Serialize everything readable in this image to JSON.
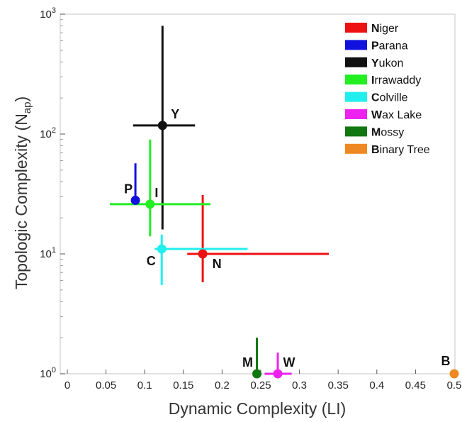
{
  "chart_data": {
    "type": "scatter",
    "xlabel": "Dynamic Complexity (LI)",
    "ylabel_main": "Topologic Complexity (N",
    "ylabel_sub": "ap",
    "ylabel_close": ")",
    "xlim": [
      0,
      0.5
    ],
    "ylim": [
      1,
      1000
    ],
    "yscale": "log",
    "grid": false,
    "legend_position": "top-right",
    "x_ticks": [
      "0",
      "0.05",
      "0.1",
      "0.15",
      "0.2",
      "0.25",
      "0.3",
      "0.35",
      "0.4",
      "0.45",
      "0.5"
    ],
    "y_ticks": [
      {
        "base": "10",
        "exp": "0"
      },
      {
        "base": "10",
        "exp": "1"
      },
      {
        "base": "10",
        "exp": "2"
      },
      {
        "base": "10",
        "exp": "3"
      }
    ],
    "series": [
      {
        "name": "Niger",
        "initial": "N",
        "rest": "iger",
        "label": "N",
        "color": "#ee1111",
        "x": 0.175,
        "y": 10,
        "x_err": [
          0.155,
          0.338
        ],
        "y_err": [
          5.8,
          31
        ]
      },
      {
        "name": "Parana",
        "initial": "P",
        "rest": "arana",
        "label": "P",
        "color": "#1111dd",
        "x": 0.088,
        "y": 28,
        "x_err": null,
        "y_err": [
          28,
          57
        ]
      },
      {
        "name": "Yukon",
        "initial": "Y",
        "rest": "ukon",
        "label": "Y",
        "color": "#111111",
        "x": 0.123,
        "y": 118,
        "x_err": [
          0.085,
          0.165
        ],
        "y_err": [
          16,
          800
        ]
      },
      {
        "name": "Irrawaddy",
        "initial": "I",
        "rest": "rrawaddy",
        "label": "I",
        "color": "#22ee22",
        "x": 0.107,
        "y": 26,
        "x_err": [
          0.055,
          0.185
        ],
        "y_err": [
          14,
          90
        ]
      },
      {
        "name": "Colville",
        "initial": "C",
        "rest": "olville",
        "label": "C",
        "color": "#22eeee",
        "x": 0.122,
        "y": 11,
        "x_err": [
          0.113,
          0.233
        ],
        "y_err": [
          5.5,
          14.5
        ]
      },
      {
        "name": "Wax Lake",
        "initial": "W",
        "rest": "ax Lake",
        "label": "W",
        "color": "#ee22ee",
        "x": 0.272,
        "y": 1,
        "x_err": [
          0.255,
          0.29
        ],
        "y_err": [
          1,
          1.5
        ]
      },
      {
        "name": "Mossy",
        "initial": "M",
        "rest": "ossy",
        "label": "M",
        "color": "#117711",
        "x": 0.245,
        "y": 1,
        "x_err": null,
        "y_err": [
          1,
          2
        ]
      },
      {
        "name": "Binary Tree",
        "initial": "B",
        "rest": "inary Tree",
        "label": "B",
        "color": "#ee8822",
        "x": 0.5,
        "y": 1,
        "x_err": null,
        "y_err": null
      }
    ]
  }
}
